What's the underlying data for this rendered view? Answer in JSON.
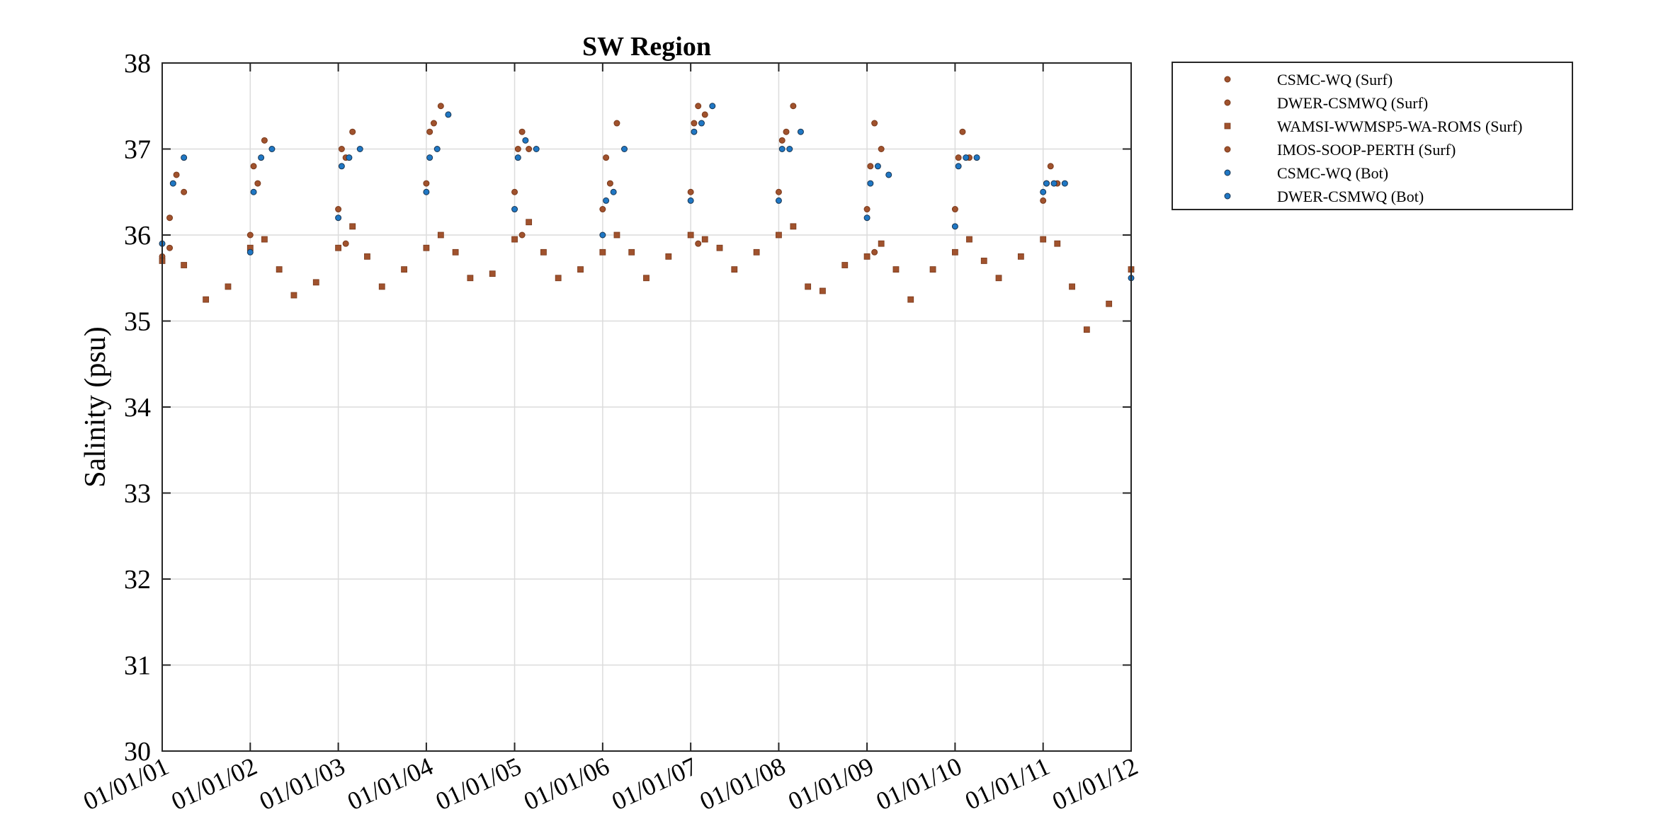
{
  "chart_data": {
    "type": "scatter",
    "title": "SW Region",
    "xlabel": "",
    "ylabel": "Salinity (psu)",
    "xlim": [
      "01/01/01",
      "01/01/12"
    ],
    "ylim": [
      30,
      38
    ],
    "x_ticks": [
      "01/01/01",
      "01/01/02",
      "01/01/03",
      "01/01/04",
      "01/01/05",
      "01/01/06",
      "01/01/07",
      "01/01/08",
      "01/01/09",
      "01/01/10",
      "01/01/11",
      "01/01/12"
    ],
    "y_ticks": [
      30,
      31,
      32,
      33,
      34,
      35,
      36,
      37,
      38
    ],
    "grid": true,
    "legend_position": "outside-top-right",
    "colors": {
      "surface": "#a0522d",
      "bottom": "#1f77c4",
      "bottom_edge": "#1a3550"
    },
    "series": [
      {
        "name": "CSMC-WQ (Surf)",
        "marker": "circle",
        "color": "#a0522d",
        "points": [
          [
            "01/01/01",
            35.75
          ],
          [
            "01/02/01",
            36.2
          ],
          [
            "01/03/01",
            36.7
          ],
          [
            "01/04/01",
            36.5
          ],
          [
            "01/01/02",
            36.0
          ],
          [
            "01/02/02",
            36.6
          ],
          [
            "01/03/02",
            37.1
          ],
          [
            "01/01/03",
            36.3
          ],
          [
            "01/02/03",
            36.9
          ],
          [
            "01/03/03",
            37.2
          ],
          [
            "01/01/04",
            36.6
          ],
          [
            "01/02/04",
            37.3
          ],
          [
            "01/03/04",
            37.5
          ],
          [
            "01/01/05",
            36.5
          ],
          [
            "01/02/05",
            37.2
          ],
          [
            "01/03/05",
            37.0
          ],
          [
            "01/01/06",
            36.3
          ],
          [
            "01/02/06",
            36.6
          ],
          [
            "01/03/06",
            37.3
          ],
          [
            "01/01/07",
            36.5
          ],
          [
            "01/02/07",
            37.5
          ],
          [
            "01/03/07",
            37.4
          ],
          [
            "01/01/08",
            36.5
          ],
          [
            "01/02/08",
            37.2
          ],
          [
            "01/03/08",
            37.5
          ],
          [
            "01/01/09",
            36.3
          ],
          [
            "01/02/09",
            37.3
          ],
          [
            "01/03/09",
            37.0
          ],
          [
            "01/01/10",
            36.3
          ],
          [
            "01/02/10",
            37.2
          ],
          [
            "01/03/10",
            36.9
          ],
          [
            "01/01/11",
            36.4
          ],
          [
            "01/02/11",
            36.8
          ],
          [
            "01/03/11",
            36.6
          ]
        ]
      },
      {
        "name": "DWER-CSMWQ (Surf)",
        "marker": "circle",
        "color": "#a0522d",
        "points": [
          [
            "15/01/02",
            36.8
          ],
          [
            "15/01/03",
            37.0
          ],
          [
            "15/01/04",
            37.2
          ],
          [
            "15/01/05",
            37.0
          ],
          [
            "15/01/06",
            36.9
          ],
          [
            "15/01/07",
            37.3
          ],
          [
            "15/01/08",
            37.1
          ],
          [
            "15/01/09",
            36.8
          ],
          [
            "15/01/10",
            36.9
          ],
          [
            "15/01/11",
            36.6
          ]
        ]
      },
      {
        "name": "WAMSI-WWMSP5-WA-ROMS (Surf)",
        "marker": "square",
        "color": "#a0522d",
        "points": [
          [
            "01/01/01",
            35.7
          ],
          [
            "01/04/01",
            35.65
          ],
          [
            "01/07/01",
            35.25
          ],
          [
            "01/10/01",
            35.4
          ],
          [
            "01/01/02",
            35.85
          ],
          [
            "01/03/02",
            35.95
          ],
          [
            "01/05/02",
            35.6
          ],
          [
            "01/07/02",
            35.3
          ],
          [
            "01/10/02",
            35.45
          ],
          [
            "01/01/03",
            35.85
          ],
          [
            "01/03/03",
            36.1
          ],
          [
            "01/05/03",
            35.75
          ],
          [
            "01/07/03",
            35.4
          ],
          [
            "01/10/03",
            35.6
          ],
          [
            "01/01/04",
            35.85
          ],
          [
            "01/03/04",
            36.0
          ],
          [
            "01/05/04",
            35.8
          ],
          [
            "01/07/04",
            35.5
          ],
          [
            "01/10/04",
            35.55
          ],
          [
            "01/01/05",
            35.95
          ],
          [
            "01/03/05",
            36.15
          ],
          [
            "01/05/05",
            35.8
          ],
          [
            "01/07/05",
            35.5
          ],
          [
            "01/10/05",
            35.6
          ],
          [
            "01/01/06",
            35.8
          ],
          [
            "01/03/06",
            36.0
          ],
          [
            "01/05/06",
            35.8
          ],
          [
            "01/07/06",
            35.5
          ],
          [
            "01/10/06",
            35.75
          ],
          [
            "01/01/07",
            36.0
          ],
          [
            "01/03/07",
            35.95
          ],
          [
            "01/05/07",
            35.85
          ],
          [
            "01/07/07",
            35.6
          ],
          [
            "01/10/07",
            35.8
          ],
          [
            "01/01/08",
            36.0
          ],
          [
            "01/03/08",
            36.1
          ],
          [
            "01/05/08",
            35.4
          ],
          [
            "01/07/08",
            35.35
          ],
          [
            "01/10/08",
            35.65
          ],
          [
            "01/01/09",
            35.75
          ],
          [
            "01/03/09",
            35.9
          ],
          [
            "01/05/09",
            35.6
          ],
          [
            "01/07/09",
            35.25
          ],
          [
            "01/10/09",
            35.6
          ],
          [
            "01/01/10",
            35.8
          ],
          [
            "01/03/10",
            35.95
          ],
          [
            "01/05/10",
            35.7
          ],
          [
            "01/07/10",
            35.5
          ],
          [
            "01/10/10",
            35.75
          ],
          [
            "01/01/11",
            35.95
          ],
          [
            "01/03/11",
            35.9
          ],
          [
            "01/05/11",
            35.4
          ],
          [
            "01/07/11",
            34.9
          ],
          [
            "01/10/11",
            35.2
          ],
          [
            "01/01/12",
            35.6
          ]
        ]
      },
      {
        "name": "IMOS-SOOP-PERTH (Surf)",
        "marker": "circle",
        "color": "#a0522d",
        "points": [
          [
            "01/02/01",
            35.85
          ],
          [
            "01/02/03",
            35.9
          ],
          [
            "01/02/05",
            36.0
          ],
          [
            "01/02/07",
            35.9
          ],
          [
            "01/02/09",
            35.8
          ]
        ]
      },
      {
        "name": "CSMC-WQ (Bot)",
        "marker": "circle",
        "color": "#1f77c4",
        "points": [
          [
            "01/01/01",
            35.9
          ],
          [
            "15/02/01",
            36.6
          ],
          [
            "01/04/01",
            36.9
          ],
          [
            "01/01/02",
            35.8
          ],
          [
            "15/02/02",
            36.9
          ],
          [
            "01/04/02",
            37.0
          ],
          [
            "01/01/03",
            36.2
          ],
          [
            "15/02/03",
            36.9
          ],
          [
            "01/04/03",
            37.0
          ],
          [
            "01/01/04",
            36.5
          ],
          [
            "15/02/04",
            37.0
          ],
          [
            "01/04/04",
            37.4
          ],
          [
            "01/01/05",
            36.3
          ],
          [
            "15/02/05",
            37.1
          ],
          [
            "01/04/05",
            37.0
          ],
          [
            "01/01/06",
            36.0
          ],
          [
            "15/02/06",
            36.5
          ],
          [
            "01/04/06",
            37.0
          ],
          [
            "01/01/07",
            36.4
          ],
          [
            "15/02/07",
            37.3
          ],
          [
            "01/04/07",
            37.5
          ],
          [
            "01/01/08",
            36.4
          ],
          [
            "15/02/08",
            37.0
          ],
          [
            "01/04/08",
            37.2
          ],
          [
            "01/01/09",
            36.2
          ],
          [
            "15/02/09",
            36.8
          ],
          [
            "01/04/09",
            36.7
          ],
          [
            "01/01/10",
            36.1
          ],
          [
            "15/02/10",
            36.9
          ],
          [
            "01/04/10",
            36.9
          ],
          [
            "01/01/11",
            36.5
          ],
          [
            "15/02/11",
            36.6
          ],
          [
            "01/04/11",
            36.6
          ],
          [
            "01/01/12",
            35.5
          ]
        ]
      },
      {
        "name": "DWER-CSMWQ (Bot)",
        "marker": "circle",
        "color": "#1f77c4",
        "points": [
          [
            "15/01/02",
            36.5
          ],
          [
            "15/01/03",
            36.8
          ],
          [
            "15/01/04",
            36.9
          ],
          [
            "15/01/05",
            36.9
          ],
          [
            "15/01/06",
            36.4
          ],
          [
            "15/01/07",
            37.2
          ],
          [
            "15/01/08",
            37.0
          ],
          [
            "15/01/09",
            36.6
          ],
          [
            "15/01/10",
            36.8
          ],
          [
            "15/01/11",
            36.6
          ]
        ]
      }
    ]
  }
}
